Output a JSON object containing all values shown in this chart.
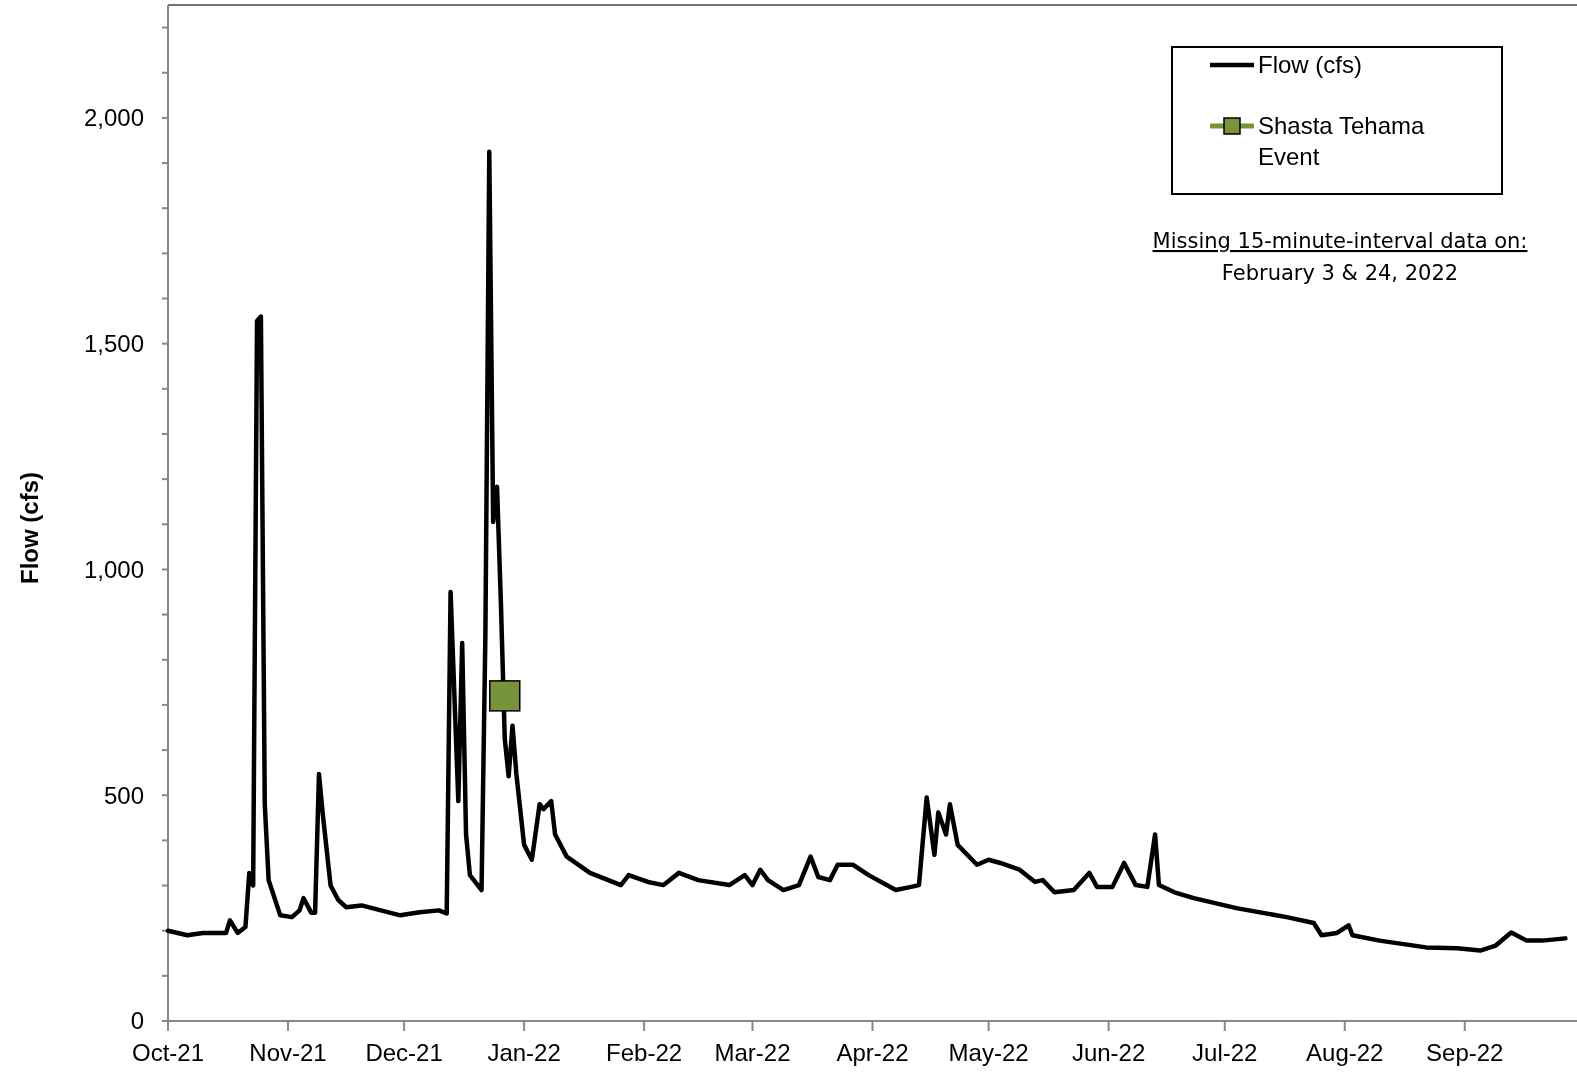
{
  "chart_data": {
    "type": "line",
    "ylabel": "Flow (cfs)",
    "xlim": [
      "2021-10-01",
      "2022-09-30"
    ],
    "xticks": [
      {
        "value": "2021-10-01",
        "label": "Oct-21"
      },
      {
        "value": "2021-11-01",
        "label": "Nov-21"
      },
      {
        "value": "2021-12-01",
        "label": "Dec-21"
      },
      {
        "value": "2022-01-01",
        "label": "Jan-22"
      },
      {
        "value": "2022-02-01",
        "label": "Feb-22"
      },
      {
        "value": "2022-03-01",
        "label": "Mar-22"
      },
      {
        "value": "2022-04-01",
        "label": "Apr-22"
      },
      {
        "value": "2022-05-01",
        "label": "May-22"
      },
      {
        "value": "2022-06-01",
        "label": "Jun-22"
      },
      {
        "value": "2022-07-01",
        "label": "Jul-22"
      },
      {
        "value": "2022-08-01",
        "label": "Aug-22"
      },
      {
        "value": "2022-09-01",
        "label": "Sep-22"
      }
    ],
    "ylim": [
      0,
      2250
    ],
    "yticks": [
      {
        "value": 0,
        "label": "0"
      },
      {
        "value": 100,
        "label": null
      },
      {
        "value": 200,
        "label": null
      },
      {
        "value": 300,
        "label": null
      },
      {
        "value": 400,
        "label": null
      },
      {
        "value": 500,
        "label": "500"
      },
      {
        "value": 600,
        "label": null
      },
      {
        "value": 700,
        "label": null
      },
      {
        "value": 800,
        "label": null
      },
      {
        "value": 900,
        "label": null
      },
      {
        "value": 1000,
        "label": "1,000"
      },
      {
        "value": 1100,
        "label": null
      },
      {
        "value": 1200,
        "label": null
      },
      {
        "value": 1300,
        "label": null
      },
      {
        "value": 1400,
        "label": null
      },
      {
        "value": 1500,
        "label": "1,500"
      },
      {
        "value": 1600,
        "label": null
      },
      {
        "value": 1700,
        "label": null
      },
      {
        "value": 1800,
        "label": null
      },
      {
        "value": 1900,
        "label": null
      },
      {
        "value": 2000,
        "label": "2,000"
      },
      {
        "value": 2100,
        "label": null
      },
      {
        "value": 2200,
        "label": null
      }
    ],
    "grid": false,
    "legend": "top right",
    "annotations": [
      "Missing 15-minute-interval data on:",
      "February 3 & 24, 2022"
    ],
    "series": [
      {
        "name": "Flow (cfs)",
        "color": "#000000",
        "marker": "none",
        "x": [
          "2021-10-01",
          "2021-10-06",
          "2021-10-10",
          "2021-10-16",
          "2021-10-17",
          "2021-10-19",
          "2021-10-21",
          "2021-10-22",
          "2021-10-23",
          "2021-10-24",
          "2021-10-25",
          "2021-10-26",
          "2021-10-27",
          "2021-10-30",
          "2021-11-02",
          "2021-11-04",
          "2021-11-05",
          "2021-11-07",
          "2021-11-08",
          "2021-11-09",
          "2021-11-10",
          "2021-11-12",
          "2021-11-14",
          "2021-11-16",
          "2021-11-20",
          "2021-11-25",
          "2021-11-30",
          "2021-12-05",
          "2021-12-10",
          "2021-12-12",
          "2021-12-13",
          "2021-12-15",
          "2021-12-16",
          "2021-12-17",
          "2021-12-18",
          "2021-12-21",
          "2021-12-22",
          "2021-12-23",
          "2021-12-24",
          "2021-12-25",
          "2021-12-26",
          "2021-12-27",
          "2021-12-28",
          "2021-12-29",
          "2021-12-30",
          "2022-01-01",
          "2022-01-03",
          "2022-01-05",
          "2022-01-06",
          "2022-01-08",
          "2022-01-09",
          "2022-01-12",
          "2022-01-18",
          "2022-01-26",
          "2022-01-28",
          "2022-02-02",
          "2022-02-06",
          "2022-02-10",
          "2022-02-15",
          "2022-02-23",
          "2022-02-27",
          "2022-03-01",
          "2022-03-03",
          "2022-03-05",
          "2022-03-09",
          "2022-03-13",
          "2022-03-16",
          "2022-03-18",
          "2022-03-21",
          "2022-03-23",
          "2022-03-27",
          "2022-03-31",
          "2022-04-07",
          "2022-04-11",
          "2022-04-13",
          "2022-04-15",
          "2022-04-17",
          "2022-04-18",
          "2022-04-20",
          "2022-04-21",
          "2022-04-23",
          "2022-04-28",
          "2022-05-01",
          "2022-05-04",
          "2022-05-09",
          "2022-05-13",
          "2022-05-15",
          "2022-05-18",
          "2022-05-23",
          "2022-05-27",
          "2022-05-29",
          "2022-06-02",
          "2022-06-05",
          "2022-06-08",
          "2022-06-11",
          "2022-06-13",
          "2022-06-14",
          "2022-06-18",
          "2022-06-23",
          "2022-07-04",
          "2022-07-17",
          "2022-07-24",
          "2022-07-26",
          "2022-07-30",
          "2022-08-02",
          "2022-08-03",
          "2022-08-10",
          "2022-08-22",
          "2022-08-30",
          "2022-09-05",
          "2022-09-09",
          "2022-09-13",
          "2022-09-17",
          "2022-09-21",
          "2022-09-27"
        ],
        "values": [
          200,
          190,
          195,
          195,
          223,
          195,
          208,
          328,
          300,
          1550,
          1560,
          480,
          312,
          234,
          230,
          245,
          272,
          240,
          240,
          547,
          457,
          300,
          268,
          252,
          256,
          245,
          234,
          241,
          245,
          238,
          950,
          487,
          837,
          413,
          323,
          290,
          860,
          1925,
          1105,
          1183,
          926,
          625,
          542,
          654,
          547,
          390,
          357,
          480,
          469,
          487,
          413,
          364,
          328,
          301,
          323,
          308,
          301,
          328,
          312,
          301,
          323,
          301,
          335,
          312,
          290,
          301,
          364,
          319,
          312,
          346,
          346,
          323,
          290,
          297,
          301,
          495,
          368,
          462,
          413,
          480,
          390,
          346,
          357,
          350,
          335,
          308,
          312,
          285,
          290,
          328,
          297,
          297,
          350,
          301,
          297,
          413,
          301,
          285,
          272,
          250,
          230,
          217,
          190,
          195,
          212,
          190,
          178,
          163,
          161,
          156,
          167,
          196,
          178,
          178,
          183
        ]
      },
      {
        "name": "Shasta Tehama Event",
        "type": "scatter",
        "color": "#77933c",
        "marker": "square",
        "x": [
          "2021-12-27"
        ],
        "values": [
          720
        ]
      }
    ]
  }
}
